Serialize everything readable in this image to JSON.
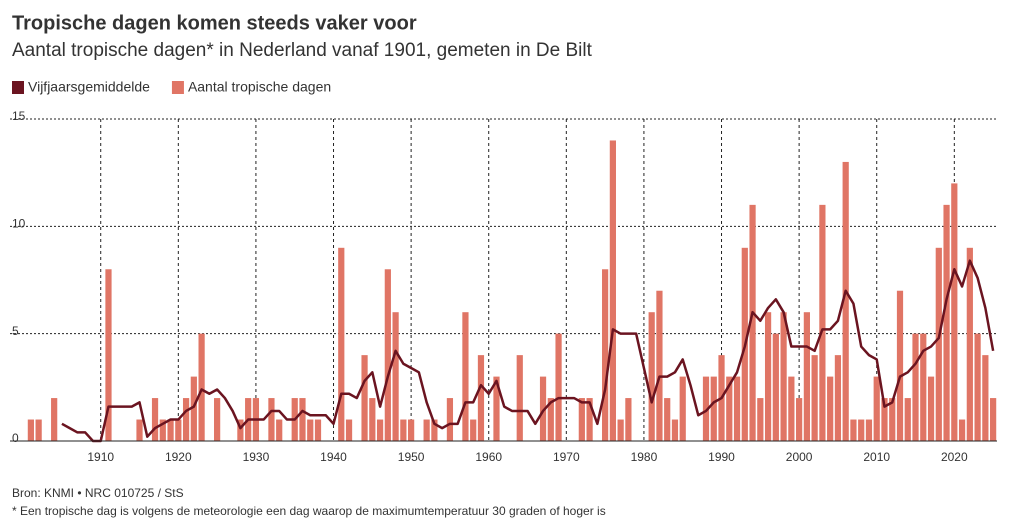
{
  "chart_data": {
    "type": "bar-line",
    "title": "Tropische dagen komen steeds vaker voor",
    "subtitle": "Aantal tropische dagen* in Nederland vanaf 1901, gemeten in De Bilt",
    "source": "Bron: KNMI • NRC 010725 / StS",
    "footnote": "* Een tropische dag is volgens de meteorologie een dag waarop de maximumtemperatuur 30 graden of hoger is",
    "x": [
      1901,
      1902,
      1903,
      1904,
      1905,
      1906,
      1907,
      1908,
      1909,
      1910,
      1911,
      1912,
      1913,
      1914,
      1915,
      1916,
      1917,
      1918,
      1919,
      1920,
      1921,
      1922,
      1923,
      1924,
      1925,
      1926,
      1927,
      1928,
      1929,
      1930,
      1931,
      1932,
      1933,
      1934,
      1935,
      1936,
      1937,
      1938,
      1939,
      1940,
      1941,
      1942,
      1943,
      1944,
      1945,
      1946,
      1947,
      1948,
      1949,
      1950,
      1951,
      1952,
      1953,
      1954,
      1955,
      1956,
      1957,
      1958,
      1959,
      1960,
      1961,
      1962,
      1963,
      1964,
      1965,
      1966,
      1967,
      1968,
      1969,
      1970,
      1971,
      1972,
      1973,
      1974,
      1975,
      1976,
      1977,
      1978,
      1979,
      1980,
      1981,
      1982,
      1983,
      1984,
      1985,
      1986,
      1987,
      1988,
      1989,
      1990,
      1991,
      1992,
      1993,
      1994,
      1995,
      1996,
      1997,
      1998,
      1999,
      2000,
      2001,
      2002,
      2003,
      2004,
      2005,
      2006,
      2007,
      2008,
      2009,
      2010,
      2011,
      2012,
      2013,
      2014,
      2015,
      2016,
      2017,
      2018,
      2019,
      2020,
      2021,
      2022,
      2023,
      2024,
      2025
    ],
    "series": [
      {
        "name": "Vijfjaarsgemiddelde",
        "type": "line",
        "color": "#6b1420",
        "values": [
          null,
          null,
          null,
          null,
          0.8,
          0.6,
          0.4,
          0.4,
          0,
          0,
          1.6,
          1.6,
          1.6,
          1.6,
          1.8,
          0.2,
          0.6,
          0.8,
          1.0,
          1.0,
          1.4,
          1.6,
          2.4,
          2.2,
          2.4,
          2.0,
          1.4,
          0.6,
          1.0,
          1.0,
          1.0,
          1.4,
          1.4,
          1.0,
          1.0,
          1.4,
          1.2,
          1.2,
          1.2,
          0.8,
          2.2,
          2.2,
          2.0,
          2.8,
          3.2,
          1.6,
          3.0,
          4.2,
          3.6,
          3.4,
          3.2,
          1.8,
          0.8,
          0.6,
          0.8,
          0.8,
          1.8,
          1.8,
          2.6,
          2.2,
          2.8,
          1.6,
          1.4,
          1.4,
          1.4,
          0.8,
          1.4,
          1.8,
          2.0,
          2.0,
          2.0,
          1.8,
          1.8,
          0.8,
          2.4,
          5.2,
          5.0,
          5.0,
          5.0,
          3.4,
          1.8,
          3.0,
          3.0,
          3.2,
          3.8,
          2.6,
          1.2,
          1.4,
          1.8,
          2.0,
          2.6,
          3.2,
          4.4,
          6.0,
          5.6,
          6.2,
          6.6,
          6.0,
          4.4,
          4.4,
          4.4,
          4.2,
          5.2,
          5.2,
          5.6,
          7.0,
          6.4,
          4.4,
          4.0,
          3.8,
          1.6,
          1.8,
          3.0,
          3.2,
          3.6,
          4.2,
          4.4,
          4.8,
          6.6,
          8.0,
          7.2,
          8.4,
          7.6,
          6.2,
          4.2
        ]
      },
      {
        "name": "Aantal tropische dagen",
        "type": "bar",
        "color": "#e07565",
        "values": [
          1,
          1,
          0,
          2,
          0,
          0,
          0,
          0,
          0,
          0,
          8,
          0,
          0,
          0,
          1,
          0,
          2,
          1,
          1,
          1,
          2,
          3,
          5,
          0,
          2,
          0,
          0,
          1,
          2,
          2,
          0,
          2,
          1,
          0,
          2,
          2,
          1,
          1,
          0,
          0,
          9,
          1,
          0,
          4,
          2,
          1,
          8,
          6,
          1,
          1,
          0,
          1,
          1,
          0,
          2,
          0,
          6,
          1,
          4,
          0,
          3,
          0,
          0,
          4,
          0,
          0,
          3,
          2,
          5,
          0,
          0,
          2,
          2,
          0,
          8,
          14,
          1,
          2,
          0,
          0,
          6,
          7,
          2,
          1,
          3,
          0,
          0,
          3,
          3,
          4,
          3,
          3,
          9,
          11,
          2,
          6,
          5,
          6,
          3,
          2,
          6,
          4,
          11,
          3,
          4,
          13,
          1,
          1,
          1,
          3,
          2,
          2,
          7,
          2,
          5,
          5,
          3,
          9,
          11,
          12,
          1,
          9,
          5,
          4,
          2
        ]
      }
    ],
    "xlim": [
      1900.5,
      2025.5
    ],
    "xticks": [
      1910,
      1920,
      1930,
      1940,
      1950,
      1960,
      1970,
      1980,
      1990,
      2000,
      2010,
      2020
    ],
    "ylim": [
      0,
      15
    ],
    "yticks": [
      0,
      5,
      10,
      15
    ],
    "grid": true,
    "legend": "top-left"
  }
}
